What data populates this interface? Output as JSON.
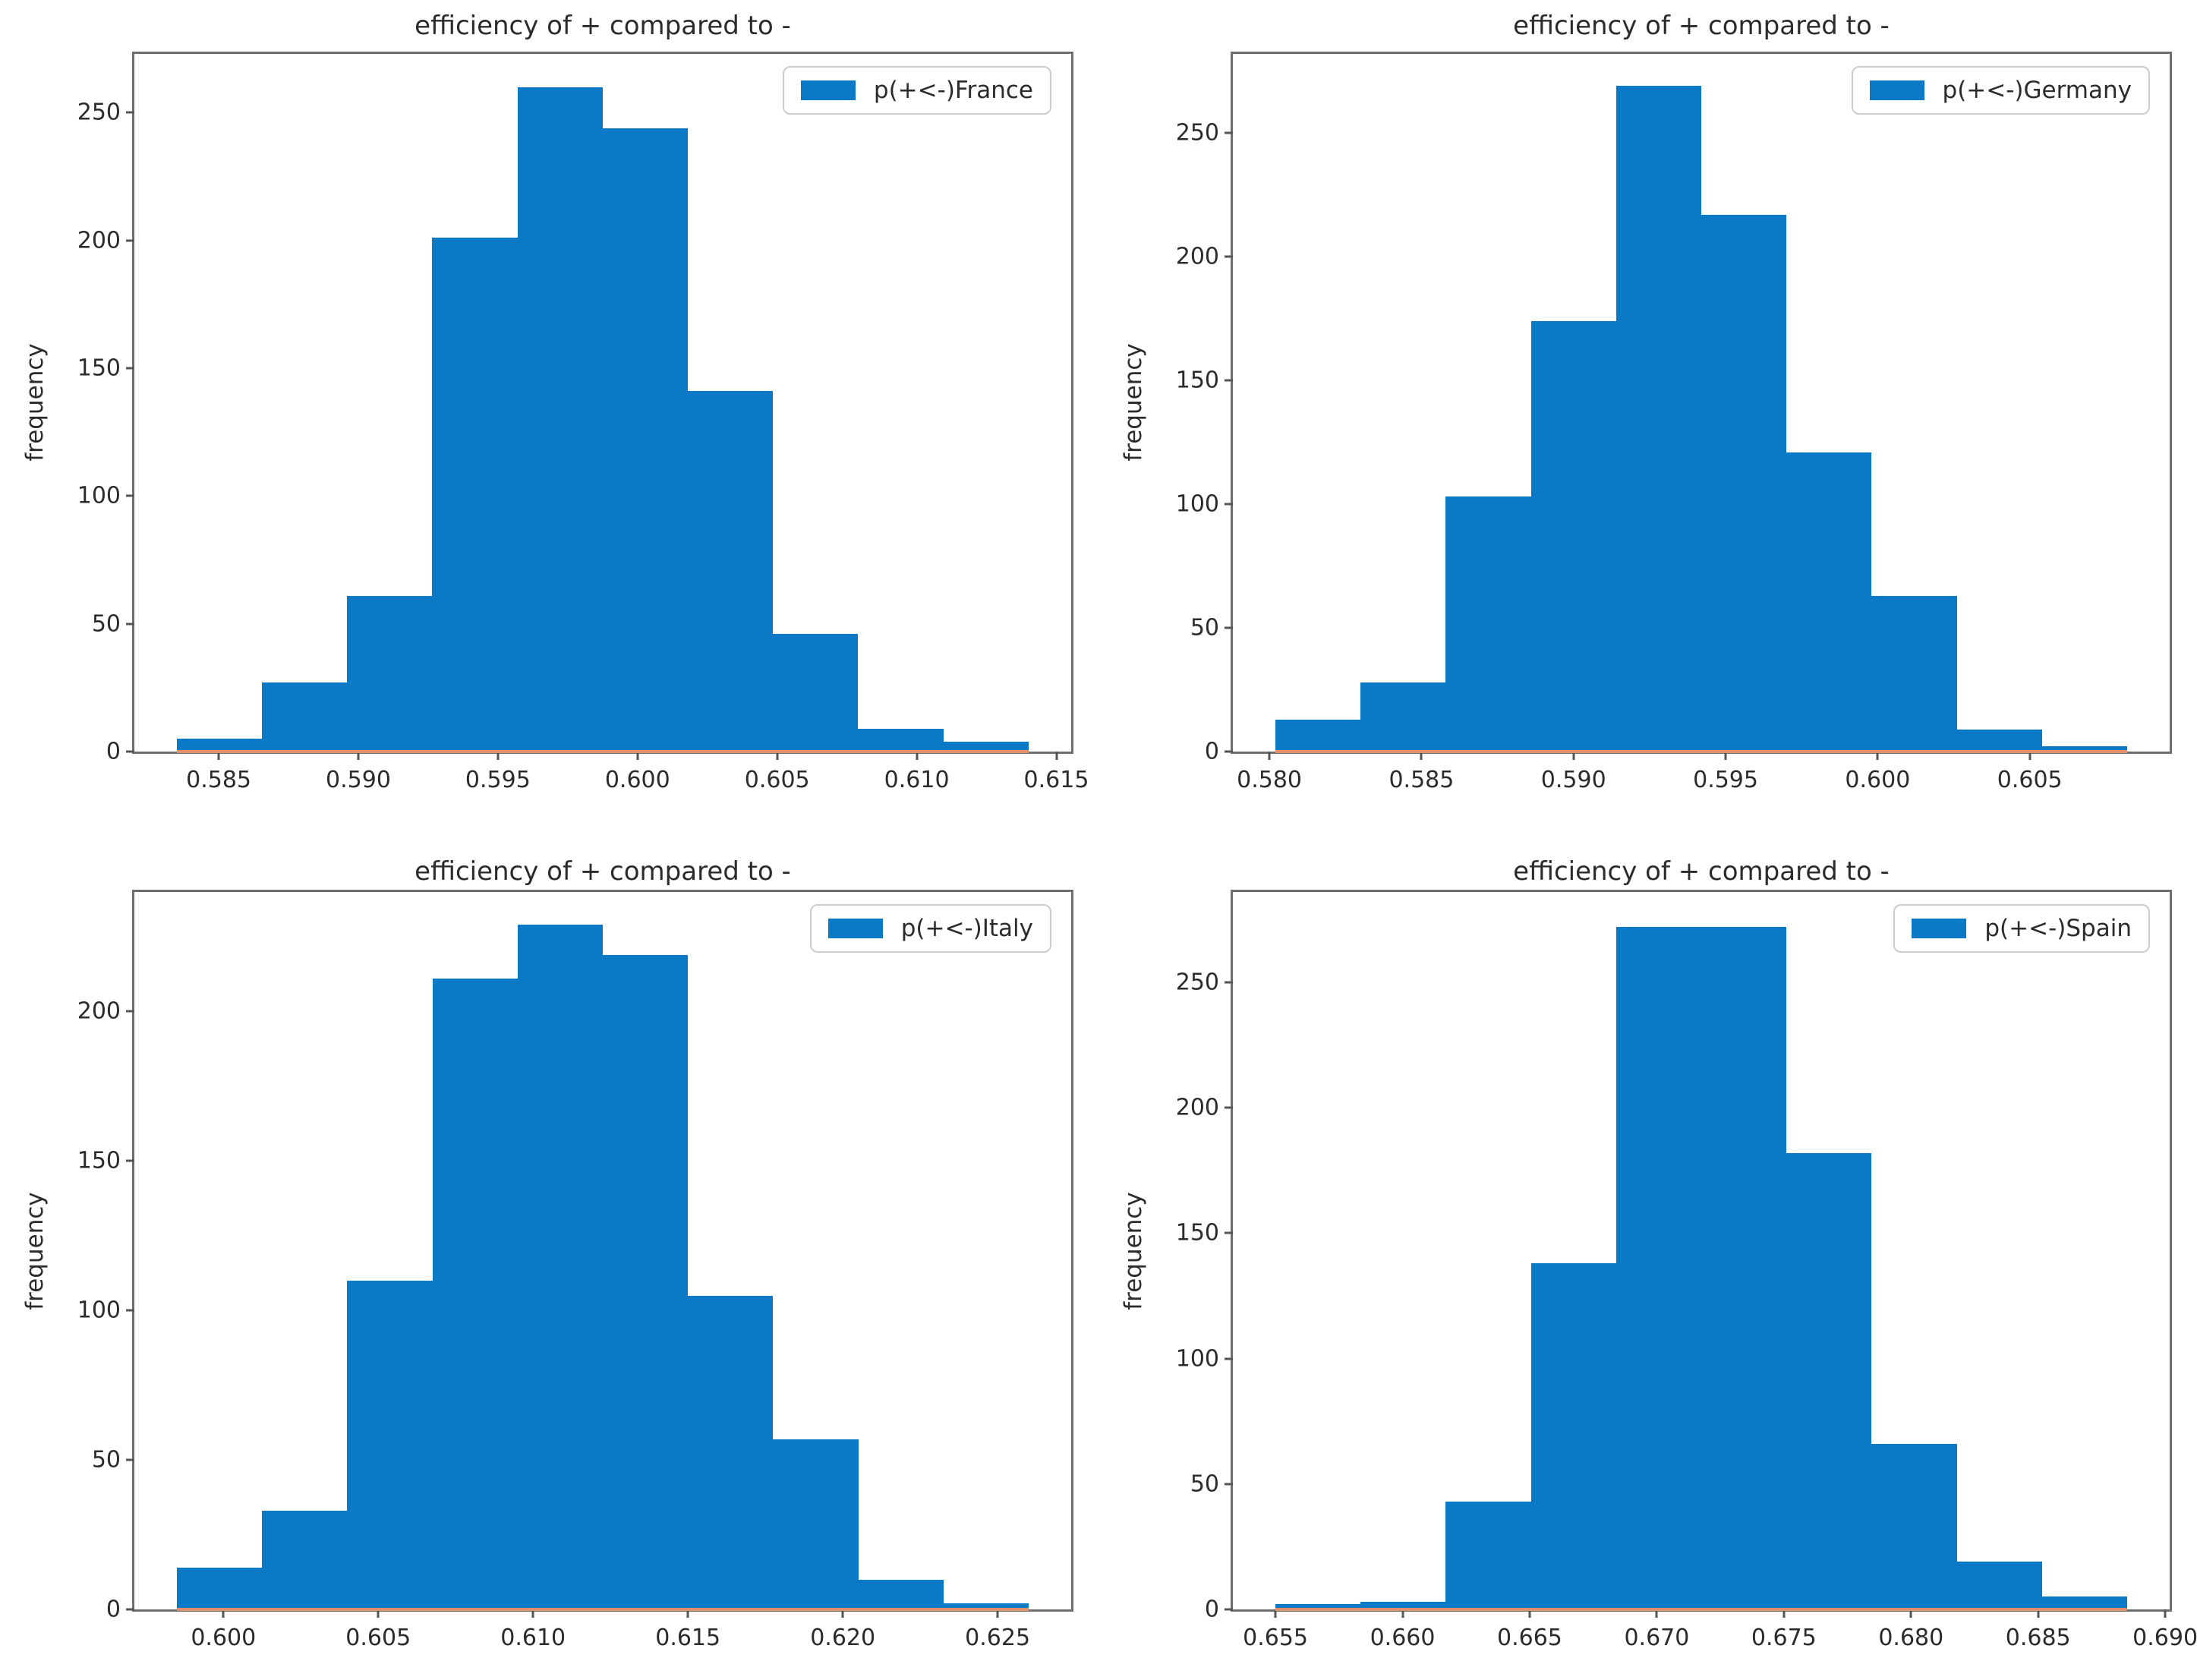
{
  "figure": {
    "layout": "2x2 grid of histogram subplots",
    "background": "#ffffff"
  },
  "style": {
    "bar_color": "#0a7ac6",
    "baseline_color": "#e0916b",
    "spine_color": "#6e6e6e",
    "text_color": "#2b2b2b",
    "legend_border_color": "#cccccc"
  },
  "chart_data": [
    {
      "type": "bar",
      "subtype": "histogram",
      "country": "France",
      "title": "efficiency of + compared to -",
      "ylabel": "frequency",
      "legend": "p(+<-)France",
      "legend_position": "upper right",
      "grid": false,
      "bin_start": 0.5835,
      "bin_width": 0.00305,
      "values": [
        5,
        27,
        61,
        201,
        260,
        244,
        141,
        46,
        9,
        4
      ],
      "xlim": [
        0.58198,
        0.61553
      ],
      "ylim": [
        0,
        273
      ],
      "xticks": [
        "0.585",
        "0.590",
        "0.595",
        "0.600",
        "0.605",
        "0.610",
        "0.615"
      ],
      "yticks": [
        "0",
        "50",
        "100",
        "150",
        "200",
        "250"
      ]
    },
    {
      "type": "bar",
      "subtype": "histogram",
      "country": "Germany",
      "title": "efficiency of + compared to -",
      "ylabel": "frequency",
      "legend": "p(+<-)Germany",
      "legend_position": "upper right",
      "grid": false,
      "bin_start": 0.5802,
      "bin_width": 0.0028,
      "values": [
        13,
        28,
        103,
        174,
        269,
        217,
        121,
        63,
        9,
        2
      ],
      "xlim": [
        0.5788,
        0.6096
      ],
      "ylim": [
        0,
        282
      ],
      "xticks": [
        "0.580",
        "0.585",
        "0.590",
        "0.595",
        "0.600",
        "0.605"
      ],
      "yticks": [
        "0",
        "50",
        "100",
        "150",
        "200",
        "250"
      ]
    },
    {
      "type": "bar",
      "subtype": "histogram",
      "country": "Italy",
      "title": "efficiency of + compared to -",
      "ylabel": "frequency",
      "legend": "p(+<-)Italy",
      "legend_position": "upper right",
      "grid": false,
      "bin_start": 0.5985,
      "bin_width": 0.00275,
      "values": [
        14,
        33,
        110,
        211,
        229,
        219,
        105,
        57,
        10,
        2
      ],
      "xlim": [
        0.597125,
        0.627375
      ],
      "ylim": [
        0,
        240
      ],
      "xticks": [
        "0.600",
        "0.605",
        "0.610",
        "0.615",
        "0.620",
        "0.625"
      ],
      "yticks": [
        "0",
        "50",
        "100",
        "150",
        "200"
      ]
    },
    {
      "type": "bar",
      "subtype": "histogram",
      "country": "Spain",
      "title": "efficiency of + compared to -",
      "ylabel": "frequency",
      "legend": "p(+<-)Spain",
      "legend_position": "upper right",
      "grid": false,
      "bin_start": 0.655,
      "bin_width": 0.00335,
      "values": [
        2,
        3,
        43,
        138,
        272,
        272,
        182,
        66,
        19,
        5
      ],
      "xlim": [
        0.653325,
        0.690175
      ],
      "ylim": [
        0,
        286
      ],
      "xticks": [
        "0.655",
        "0.660",
        "0.665",
        "0.670",
        "0.675",
        "0.680",
        "0.685",
        "0.690"
      ],
      "yticks": [
        "0",
        "50",
        "100",
        "150",
        "200",
        "250"
      ]
    }
  ]
}
